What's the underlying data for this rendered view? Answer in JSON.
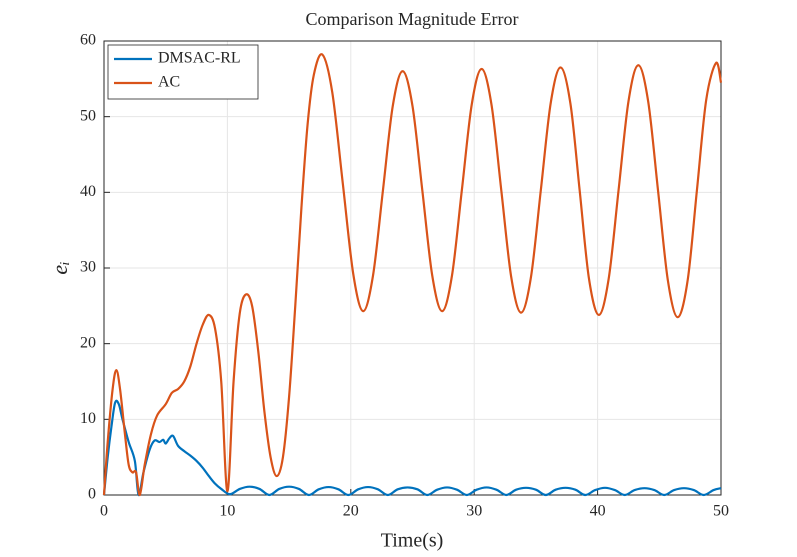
{
  "chart_data": {
    "type": "line",
    "title": "Comparison Magnitude Error",
    "xlabel": "Time(s)",
    "ylabel": "eᵢ",
    "xlim": [
      0,
      50
    ],
    "ylim": [
      0,
      60
    ],
    "xticks": [
      0,
      10,
      20,
      30,
      40,
      50
    ],
    "yticks": [
      0,
      10,
      20,
      30,
      40,
      50,
      60
    ],
    "grid": true,
    "legend": "northwest",
    "series": [
      {
        "name": "DMSAC-RL",
        "color": "#0072BD",
        "x": [
          0,
          0.3,
          0.6,
          0.9,
          1.2,
          1.5,
          2.0,
          2.5,
          2.8,
          3.2,
          3.7,
          4.1,
          4.5,
          4.8,
          5.0,
          5.3,
          5.6,
          6.0,
          6.5,
          7.0,
          7.5,
          8.0,
          8.5,
          9.0,
          9.5,
          10.2,
          11.0,
          11.8,
          12.6,
          13.4,
          14.2,
          15.0,
          15.8,
          16.6,
          17.4,
          18.2,
          19.0,
          19.8,
          20.6,
          21.4,
          22.2,
          23.0,
          23.8,
          24.6,
          25.4,
          26.2,
          27.0,
          27.8,
          28.6,
          29.4,
          30.2,
          31.0,
          31.8,
          32.6,
          33.4,
          34.2,
          35.0,
          35.8,
          36.6,
          37.4,
          38.2,
          39.0,
          39.8,
          40.6,
          41.4,
          42.2,
          43.0,
          43.8,
          44.6,
          45.4,
          46.2,
          47.0,
          47.8,
          48.6,
          49.4,
          50.0
        ],
        "values": [
          0,
          5,
          9,
          12.2,
          12,
          10,
          7,
          4.5,
          0,
          3,
          6,
          7.2,
          7,
          7.3,
          6.8,
          7.5,
          7.8,
          6.5,
          5.8,
          5.2,
          4.5,
          3.6,
          2.5,
          1.5,
          0.8,
          0.1,
          0.8,
          1.1,
          0.8,
          0,
          0.8,
          1.1,
          0.8,
          0,
          0.75,
          1.05,
          0.75,
          0,
          0.75,
          1.05,
          0.75,
          0,
          0.75,
          1.0,
          0.75,
          0,
          0.7,
          1.0,
          0.7,
          0,
          0.7,
          1.0,
          0.7,
          0,
          0.7,
          0.95,
          0.7,
          0,
          0.7,
          0.95,
          0.7,
          0,
          0.65,
          0.95,
          0.65,
          0,
          0.65,
          0.9,
          0.65,
          0,
          0.65,
          0.9,
          0.65,
          0,
          0.65,
          0.9
        ]
      },
      {
        "name": "AC",
        "color": "#D95319",
        "x": [
          0,
          0.3,
          0.7,
          1.0,
          1.3,
          1.7,
          2.0,
          2.3,
          2.6,
          2.9,
          3.3,
          3.8,
          4.3,
          5.0,
          5.5,
          6.0,
          6.5,
          7.0,
          7.5,
          8.0,
          8.5,
          9.0,
          9.5,
          10.0,
          10.5,
          11.0,
          11.5,
          12.0,
          12.5,
          13.0,
          13.5,
          14.0,
          14.5,
          15.0,
          15.5,
          16.0,
          16.5,
          17.0,
          17.7,
          18.5,
          19.35,
          20.2,
          21.0,
          21.8,
          22.6,
          23.4,
          24.2,
          25.0,
          25.8,
          26.6,
          27.4,
          28.2,
          29.0,
          29.8,
          30.6,
          31.4,
          32.2,
          33.0,
          33.8,
          34.6,
          35.4,
          36.2,
          37.0,
          37.8,
          38.55,
          39.3,
          40.1,
          40.9,
          41.7,
          42.5,
          43.3,
          44.1,
          44.9,
          45.7,
          46.5,
          47.3,
          48.05,
          48.8,
          49.6,
          50.0
        ],
        "values": [
          0,
          7,
          14,
          16.5,
          14,
          8,
          4,
          3,
          3,
          0,
          4,
          8,
          10.5,
          12,
          13.5,
          14,
          15,
          17,
          20,
          22.5,
          23.8,
          22,
          15,
          0.5,
          15,
          24,
          26.5,
          25,
          19,
          11,
          5,
          2.5,
          5,
          13,
          25,
          38,
          49,
          55.5,
          58.2,
          53.2,
          41.2,
          29.2,
          24.3,
          29,
          40.2,
          51.4,
          56,
          51.4,
          40.2,
          29,
          24.3,
          29,
          40.3,
          51.6,
          56.3,
          51.6,
          40.2,
          28.8,
          24.1,
          28.8,
          40.3,
          51.8,
          56.5,
          51.7,
          40.2,
          28.6,
          23.8,
          28.6,
          40.3,
          52,
          56.8,
          52,
          40.2,
          28.3,
          23.5,
          28.4,
          40.3,
          52.2,
          57.1,
          54.5
        ]
      }
    ]
  }
}
